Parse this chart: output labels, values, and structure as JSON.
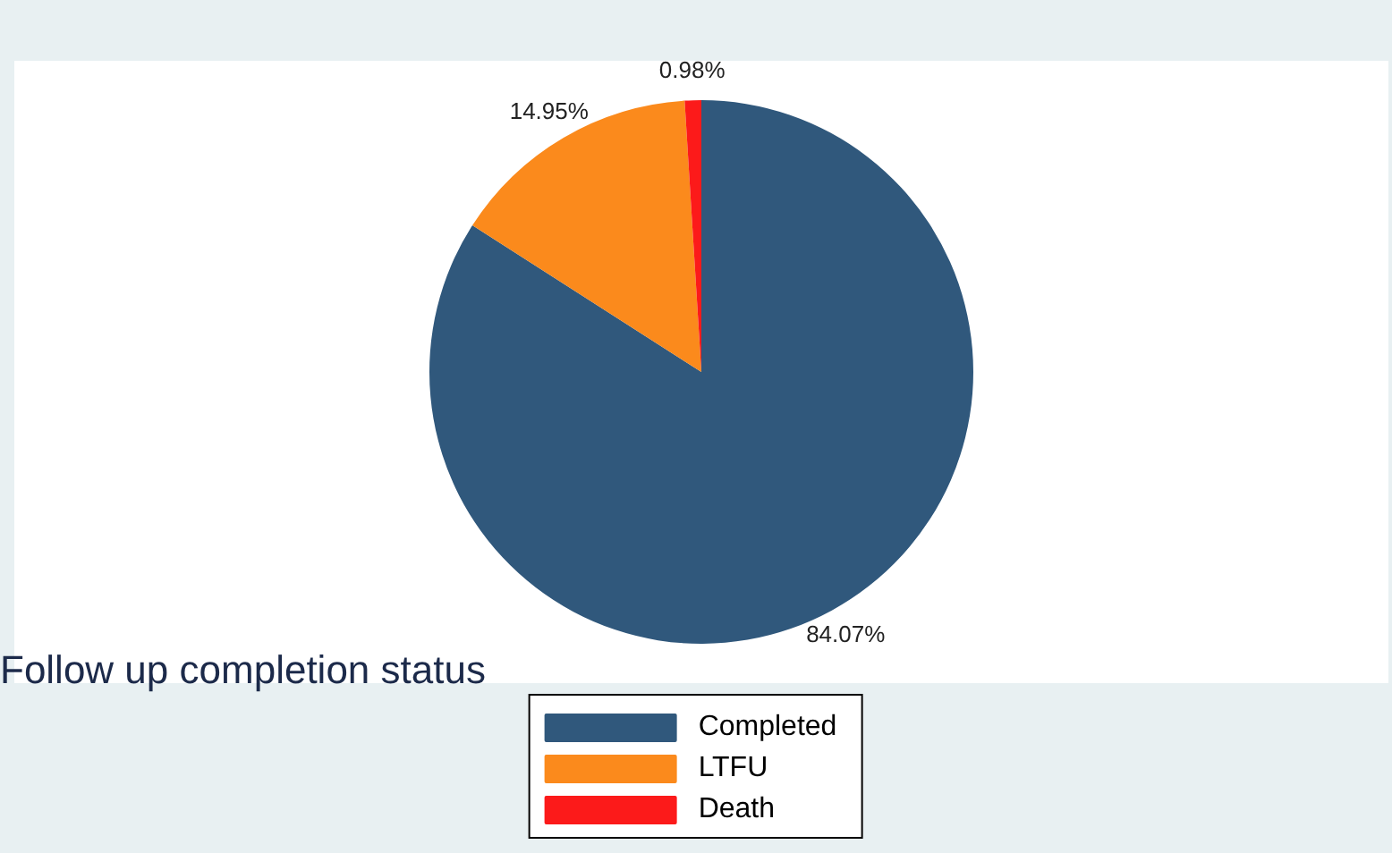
{
  "chart_data": {
    "type": "pie",
    "title": "Follow up completion status",
    "categories": [
      "Completed",
      "LTFU",
      "Death"
    ],
    "values": [
      84.07,
      14.95,
      0.98
    ],
    "colors": [
      "#30587c",
      "#fb8a1c",
      "#fc1a1a"
    ],
    "value_labels": [
      "84.07%",
      "14.95%",
      "0.98%"
    ],
    "legend": "bottom"
  }
}
